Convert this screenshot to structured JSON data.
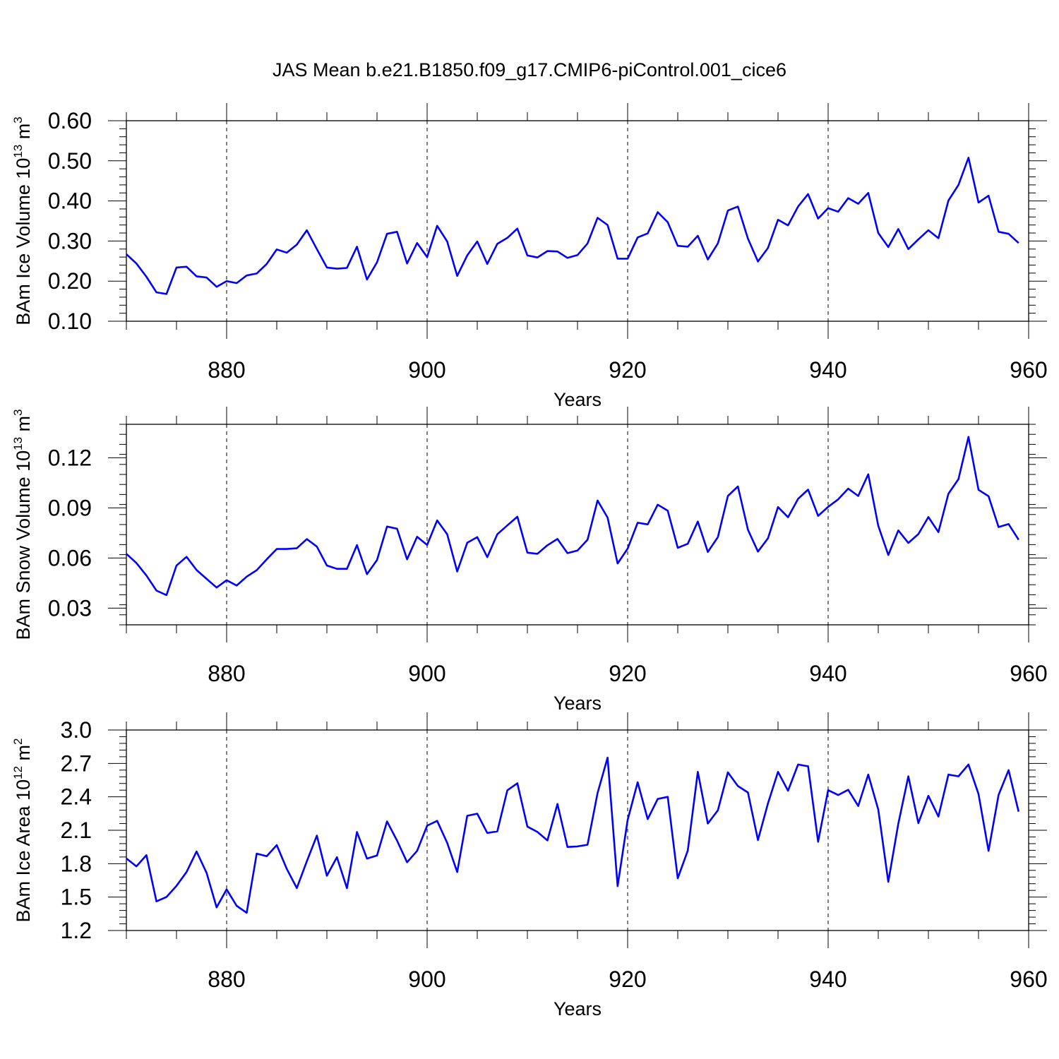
{
  "figure_title": "JAS Mean b.e21.B1850.f09_g17.CMIP6-piControl.001_cice6",
  "colors": {
    "line": "#0000ff",
    "axis": "#000000",
    "grid": "#000000"
  },
  "chart_data": [
    {
      "type": "line",
      "ylabel": {
        "main": "BAm Ice Volume 10",
        "sup1": "13",
        "mid": " m",
        "sup2": "3"
      },
      "xlabel": "Years",
      "xlim": [
        870,
        960
      ],
      "ylim": [
        0.1,
        0.6
      ],
      "xticks": [
        880,
        900,
        920,
        940,
        960
      ],
      "yticks": [
        0.1,
        0.2,
        0.3,
        0.4,
        0.5,
        0.6
      ],
      "ytick_labels": [
        "0.10",
        "0.20",
        "0.30",
        "0.40",
        "0.50",
        "0.60"
      ],
      "x_start": 870,
      "series": [
        {
          "name": "Ice Volume",
          "values": [
            0.267,
            0.244,
            0.211,
            0.172,
            0.168,
            0.234,
            0.236,
            0.212,
            0.209,
            0.186,
            0.2,
            0.195,
            0.214,
            0.219,
            0.243,
            0.279,
            0.271,
            0.291,
            0.327,
            0.28,
            0.234,
            0.231,
            0.233,
            0.286,
            0.204,
            0.247,
            0.318,
            0.323,
            0.244,
            0.295,
            0.26,
            0.338,
            0.299,
            0.213,
            0.264,
            0.299,
            0.243,
            0.293,
            0.308,
            0.331,
            0.264,
            0.259,
            0.275,
            0.274,
            0.258,
            0.265,
            0.294,
            0.358,
            0.34,
            0.256,
            0.256,
            0.309,
            0.319,
            0.372,
            0.347,
            0.288,
            0.286,
            0.313,
            0.254,
            0.294,
            0.376,
            0.386,
            0.306,
            0.249,
            0.283,
            0.353,
            0.339,
            0.386,
            0.417,
            0.356,
            0.382,
            0.373,
            0.407,
            0.393,
            0.42,
            0.32,
            0.285,
            0.33,
            0.28,
            0.304,
            0.327,
            0.307,
            0.401,
            0.44,
            0.508,
            0.396,
            0.413,
            0.323,
            0.318,
            0.295
          ]
        }
      ]
    },
    {
      "type": "line",
      "ylabel": {
        "main": "BAm Snow Volume 10",
        "sup1": "13",
        "mid": " m",
        "sup2": "3"
      },
      "xlabel": "Years",
      "xlim": [
        870,
        960
      ],
      "ylim": [
        0.02,
        0.14
      ],
      "xticks": [
        880,
        900,
        920,
        940,
        960
      ],
      "yticks": [
        0.03,
        0.06,
        0.09,
        0.12
      ],
      "ytick_labels": [
        "0.03",
        "0.06",
        "0.09",
        "0.12"
      ],
      "x_start": 870,
      "series": [
        {
          "name": "Snow Volume",
          "values": [
            0.0625,
            0.057,
            0.0495,
            0.0405,
            0.0378,
            0.0555,
            0.0607,
            0.0528,
            0.0475,
            0.0423,
            0.0467,
            0.0435,
            0.0488,
            0.0527,
            0.0592,
            0.0654,
            0.0654,
            0.0658,
            0.0713,
            0.0668,
            0.0555,
            0.0535,
            0.0535,
            0.0677,
            0.0503,
            0.0588,
            0.0788,
            0.0775,
            0.0592,
            0.0727,
            0.0678,
            0.0825,
            0.0742,
            0.0519,
            0.0691,
            0.0725,
            0.0605,
            0.0742,
            0.0795,
            0.0847,
            0.0632,
            0.0625,
            0.0676,
            0.0714,
            0.0629,
            0.0645,
            0.0709,
            0.0944,
            0.0842,
            0.0567,
            0.0656,
            0.0811,
            0.0801,
            0.0919,
            0.0883,
            0.0661,
            0.0685,
            0.0818,
            0.0636,
            0.0725,
            0.0971,
            0.1028,
            0.0769,
            0.0638,
            0.0718,
            0.0905,
            0.0844,
            0.0954,
            0.1009,
            0.0852,
            0.0906,
            0.0951,
            0.1015,
            0.0971,
            0.1101,
            0.0793,
            0.0618,
            0.0765,
            0.069,
            0.0743,
            0.0845,
            0.0755,
            0.0985,
            0.1072,
            0.1325,
            0.1008,
            0.097,
            0.0785,
            0.0803,
            0.0709
          ]
        }
      ]
    },
    {
      "type": "line",
      "ylabel": {
        "main": "BAm Ice Area 10",
        "sup1": "12",
        "mid": " m",
        "sup2": "2"
      },
      "xlabel": "Years",
      "xlim": [
        870,
        960
      ],
      "ylim": [
        1.2,
        3.0
      ],
      "xticks": [
        880,
        900,
        920,
        940,
        960
      ],
      "yticks": [
        1.2,
        1.5,
        1.8,
        2.1,
        2.4,
        2.7,
        3.0
      ],
      "ytick_labels": [
        "1.2",
        "1.5",
        "1.8",
        "2.1",
        "2.4",
        "2.7",
        "3.0"
      ],
      "x_start": 870,
      "series": [
        {
          "name": "Ice Area",
          "values": [
            1.847,
            1.776,
            1.876,
            1.462,
            1.501,
            1.601,
            1.725,
            1.91,
            1.718,
            1.408,
            1.569,
            1.422,
            1.359,
            1.89,
            1.867,
            1.967,
            1.753,
            1.581,
            1.822,
            2.052,
            1.692,
            1.858,
            1.58,
            2.084,
            1.846,
            1.874,
            2.179,
            2.007,
            1.813,
            1.915,
            2.141,
            2.184,
            1.987,
            1.725,
            2.23,
            2.249,
            2.076,
            2.09,
            2.459,
            2.522,
            2.133,
            2.085,
            2.009,
            2.336,
            1.95,
            1.955,
            1.97,
            2.434,
            2.752,
            1.598,
            2.192,
            2.531,
            2.2,
            2.381,
            2.4,
            1.669,
            1.918,
            2.624,
            2.16,
            2.279,
            2.62,
            2.497,
            2.439,
            2.012,
            2.342,
            2.624,
            2.455,
            2.69,
            2.674,
            1.997,
            2.46,
            2.416,
            2.463,
            2.318,
            2.6,
            2.286,
            1.637,
            2.159,
            2.584,
            2.164,
            2.409,
            2.223,
            2.6,
            2.584,
            2.69,
            2.425,
            1.915,
            2.417,
            2.64,
            2.267
          ]
        }
      ]
    }
  ]
}
